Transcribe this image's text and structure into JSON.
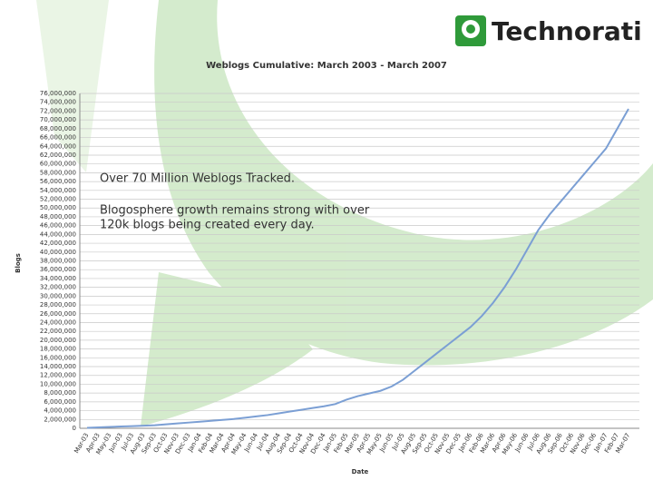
{
  "logo": "Technorati",
  "chart_data": {
    "type": "line",
    "title": "Weblogs Cumulative: March 2003 - March 2007",
    "ylabel": "Blogs",
    "xlabel": "Date",
    "annotations": [
      "Over 70 Million Weblogs Tracked.",
      "Blogosphere growth remains strong with over",
      "120k blogs being created every day."
    ],
    "categories": [
      "Mar-03",
      "Apr-03",
      "May-03",
      "Jun-03",
      "Jul-03",
      "Aug-03",
      "Sep-03",
      "Oct-03",
      "Nov-03",
      "Dec-03",
      "Jan-04",
      "Feb-04",
      "Mar-04",
      "Apr-04",
      "May-04",
      "Jun-04",
      "Jul-04",
      "Aug-04",
      "Sep-04",
      "Oct-04",
      "Nov-04",
      "Dec-04",
      "Jan-05",
      "Feb-05",
      "Mar-05",
      "Apr-05",
      "May-05",
      "Jun-05",
      "Jul-05",
      "Aug-05",
      "Sep-05",
      "Oct-05",
      "Nov-05",
      "Dec-05",
      "Jan-06",
      "Feb-06",
      "Mar-06",
      "Apr-06",
      "May-06",
      "Jun-06",
      "Jul-06",
      "Aug-06",
      "Sep-06",
      "Oct-06",
      "Nov-06",
      "Dec-06",
      "Jan-07",
      "Feb-07",
      "Mar-07"
    ],
    "values": [
      100000,
      200000,
      300000,
      400000,
      500000,
      600000,
      700000,
      900000,
      1100000,
      1300000,
      1500000,
      1700000,
      1900000,
      2100000,
      2400000,
      2700000,
      3000000,
      3400000,
      3800000,
      4200000,
      4600000,
      5000000,
      5500000,
      6500000,
      7300000,
      7900000,
      8500000,
      9500000,
      11000000,
      13000000,
      15000000,
      17000000,
      19000000,
      21000000,
      23000000,
      25500000,
      28500000,
      32000000,
      36000000,
      40500000,
      45000000,
      48500000,
      51500000,
      54500000,
      57500000,
      60500000,
      63500000,
      68000000,
      72500000
    ],
    "color": "#7b9fd4",
    "ylim": [
      0,
      76000000
    ],
    "yticks": [
      0,
      {
        "value": 2000000,
        "label": "2,000,000"
      },
      {
        "value": 4000000,
        "label": "4,000,000"
      },
      {
        "value": 6000000,
        "label": "6,000,000"
      },
      {
        "value": 8000000,
        "label": "8,000,000"
      },
      {
        "value": 10000000,
        "label": "10,000,000"
      },
      {
        "value": 12000000,
        "label": "12,000,000"
      },
      {
        "value": 14000000,
        "label": "14,000,000"
      },
      {
        "value": 16000000,
        "label": "16,000,000"
      },
      {
        "value": 18000000,
        "label": "18,000,000"
      },
      {
        "value": 20000000,
        "label": "20,000,000"
      },
      {
        "value": 22000000,
        "label": "22,000,000"
      },
      {
        "value": 24000000,
        "label": "24,000,000"
      },
      {
        "value": 26000000,
        "label": "26,000,000"
      },
      {
        "value": 28000000,
        "label": "28,000,000"
      },
      {
        "value": 30000000,
        "label": "30,000,000"
      },
      {
        "value": 32000000,
        "label": "32,000,000"
      },
      {
        "value": 34000000,
        "label": "34,000,000"
      },
      {
        "value": 36000000,
        "label": "36,000,000"
      },
      {
        "value": 38000000,
        "label": "38,000,000"
      },
      {
        "value": 40000000,
        "label": "40,000,000"
      },
      {
        "value": 42000000,
        "label": "42,000,000"
      },
      {
        "value": 44000000,
        "label": "44,000,000"
      },
      {
        "value": 46000000,
        "label": "46,000,000"
      },
      {
        "value": 48000000,
        "label": "48,000,000"
      },
      {
        "value": 50000000,
        "label": "50,000,000"
      },
      {
        "value": 52000000,
        "label": "52,000,000"
      },
      {
        "value": 54000000,
        "label": "54,000,000"
      },
      {
        "value": 56000000,
        "label": "56,000,000"
      },
      {
        "value": 58000000,
        "label": "58,000,000"
      },
      {
        "value": 60000000,
        "label": "60,000,000"
      },
      {
        "value": 62000000,
        "label": "62,000,000"
      },
      {
        "value": 64000000,
        "label": "64,000,000"
      },
      {
        "value": 66000000,
        "label": "66,000,000"
      },
      {
        "value": 68000000,
        "label": "68,000,000"
      },
      {
        "value": 70000000,
        "label": "70,000,000"
      },
      {
        "value": 72000000,
        "label": "72,000,000"
      },
      {
        "value": 74000000,
        "label": "74,000,000"
      },
      {
        "value": 76000000,
        "label": "76,000,000"
      }
    ],
    "grid": true
  }
}
